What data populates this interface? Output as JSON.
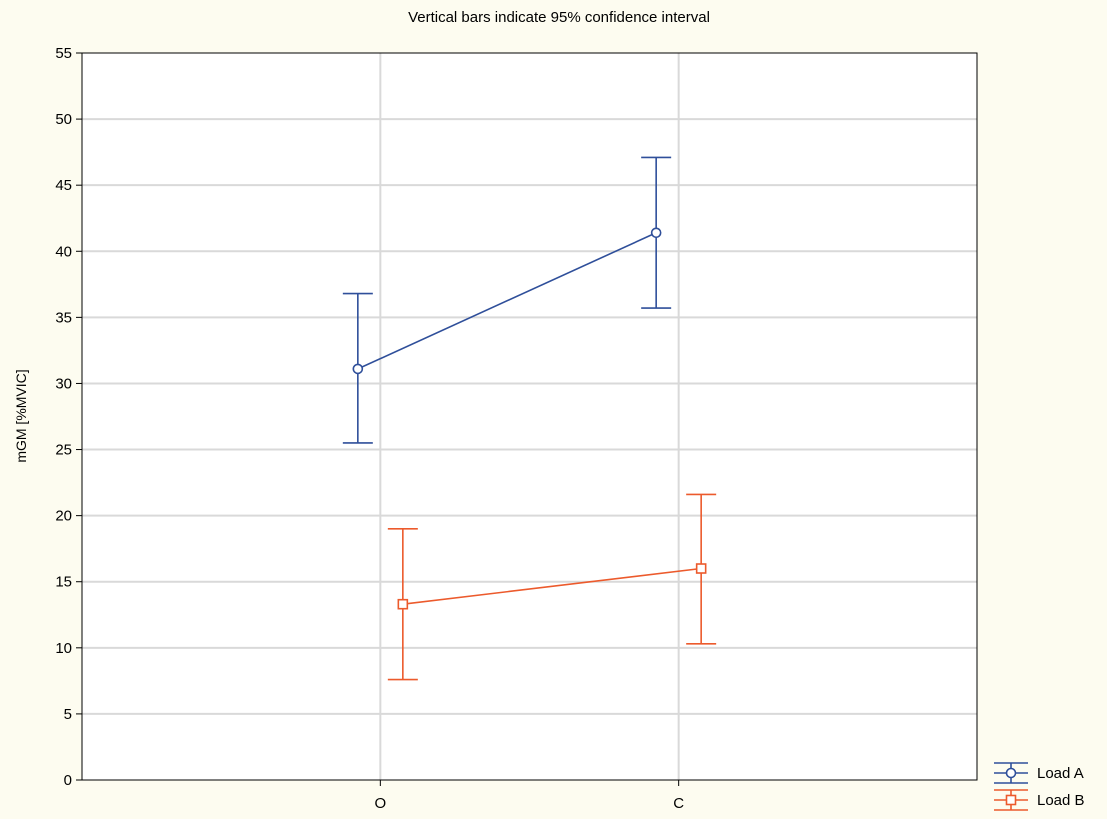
{
  "chart_data": {
    "type": "line",
    "title": "Vertical bars indicate 95% confidence interval",
    "xlabel": "",
    "ylabel": "mGM [%MVIC]",
    "categories": [
      "O",
      "C"
    ],
    "ylim": [
      0,
      55
    ],
    "yticks": [
      0,
      5,
      10,
      15,
      20,
      25,
      30,
      35,
      40,
      45,
      50,
      55
    ],
    "grid": true,
    "legend_position": "bottom-right outside",
    "series": [
      {
        "name": "Load A",
        "color": "#2f4f9a",
        "marker": "circle",
        "values": [
          31.1,
          41.4
        ],
        "ci_lower": [
          25.5,
          35.7
        ],
        "ci_upper": [
          36.8,
          47.1
        ]
      },
      {
        "name": "Load B",
        "color": "#ec5a2c",
        "marker": "square",
        "values": [
          13.3,
          16.0
        ],
        "ci_lower": [
          7.6,
          10.3
        ],
        "ci_upper": [
          19.0,
          21.6
        ]
      }
    ]
  }
}
